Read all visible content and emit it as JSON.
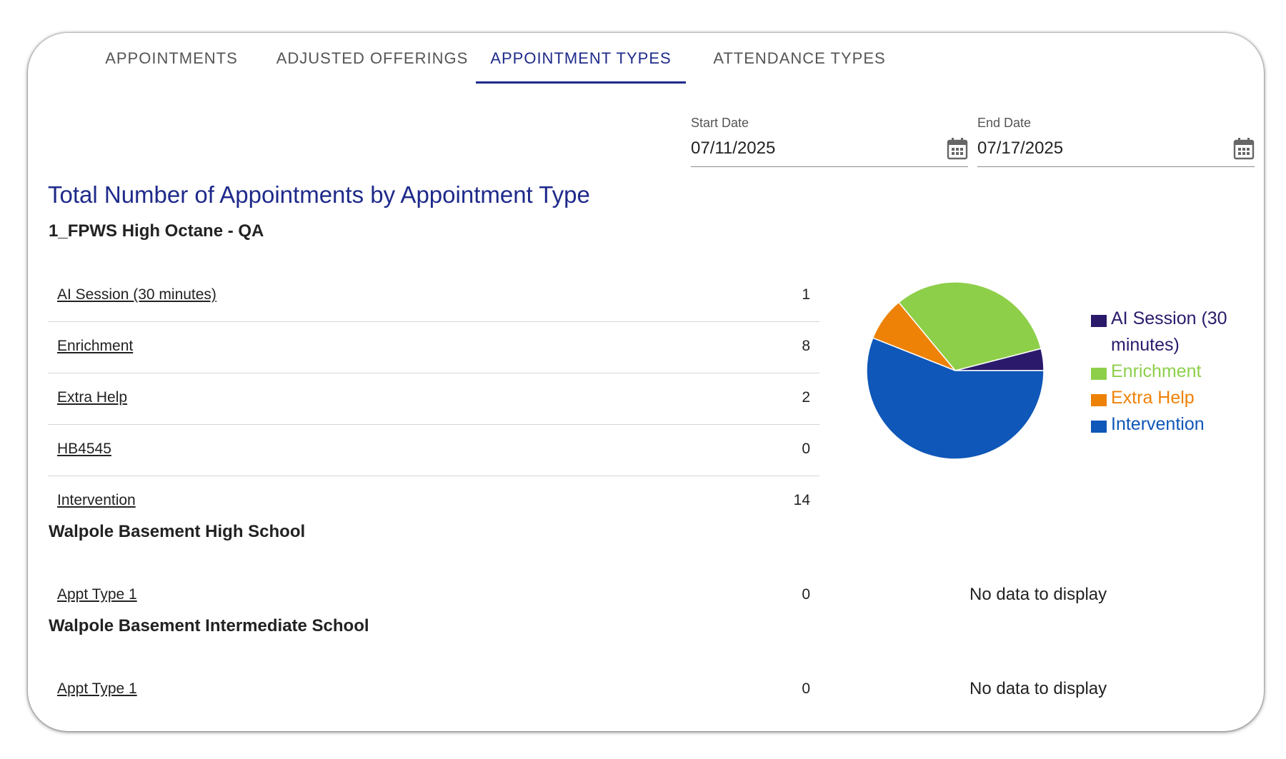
{
  "tabs": [
    {
      "label": "APPOINTMENTS",
      "active": false
    },
    {
      "label": "ADJUSTED OFFERINGS",
      "active": false
    },
    {
      "label": "APPOINTMENT TYPES",
      "active": true
    },
    {
      "label": "ATTENDANCE TYPES",
      "active": false
    }
  ],
  "filters": {
    "start_date": {
      "label": "Start Date",
      "value": "07/11/2025"
    },
    "end_date": {
      "label": "End Date",
      "value": "07/17/2025"
    }
  },
  "report": {
    "title": "Total Number of Appointments by Appointment Type",
    "schools": [
      {
        "name": "1_FPWS High Octane - QA",
        "rows": [
          {
            "label": "AI Session (30 minutes)",
            "count": "1"
          },
          {
            "label": "Enrichment",
            "count": "8"
          },
          {
            "label": "Extra Help",
            "count": "2"
          },
          {
            "label": "HB4545",
            "count": "0"
          },
          {
            "label": "Intervention",
            "count": "14"
          }
        ]
      },
      {
        "name": "Walpole Basement High School",
        "rows": [
          {
            "label": "Appt Type 1",
            "count": "0"
          }
        ],
        "no_data_text": "No data to display"
      },
      {
        "name": "Walpole Basement Intermediate School",
        "rows": [
          {
            "label": "Appt Type 1",
            "count": "0"
          }
        ],
        "no_data_text": "No data to display"
      }
    ]
  },
  "colors": {
    "accent": "#1e2a8a",
    "ai_session": "#2b1a6b",
    "enrichment": "#8ecf4a",
    "extra_help": "#ee8207",
    "intervention": "#0f57b8"
  },
  "chart_data": {
    "type": "pie",
    "title": "",
    "categories": [
      "AI Session (30 minutes)",
      "Enrichment",
      "Extra Help",
      "Intervention"
    ],
    "values": [
      1,
      8,
      2,
      14
    ],
    "colors": [
      "#2b1a6b",
      "#8ecf4a",
      "#ee8207",
      "#0f57b8"
    ],
    "legend": "right"
  }
}
